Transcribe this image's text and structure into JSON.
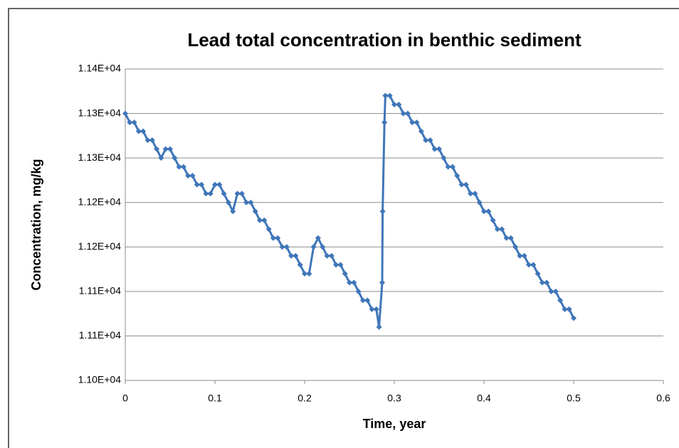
{
  "chart_data": {
    "type": "line",
    "title": "Lead total concentration in benthic sediment",
    "x_label": "Time, year",
    "y_label": "Concentration, mg/kg",
    "xlim": [
      0,
      0.6
    ],
    "xticks": [
      0,
      0.1,
      0.2,
      0.3,
      0.4,
      0.5,
      0.6
    ],
    "ylim": [
      11000,
      11350
    ],
    "yticks": [
      {
        "value": 11000,
        "label": "1.10E+04"
      },
      {
        "value": 11050,
        "label": "1.11E+04"
      },
      {
        "value": 11100,
        "label": "1.11E+04"
      },
      {
        "value": 11150,
        "label": "1.12E+04"
      },
      {
        "value": 11200,
        "label": "1.12E+04"
      },
      {
        "value": 11250,
        "label": "1.13E+04"
      },
      {
        "value": 11300,
        "label": "1.13E+04"
      },
      {
        "value": 11350,
        "label": "1.14E+04"
      }
    ],
    "grid": true,
    "x": [
      0,
      0.005,
      0.01,
      0.015,
      0.02,
      0.025,
      0.03,
      0.035,
      0.04,
      0.045,
      0.05,
      0.055,
      0.06,
      0.065,
      0.07,
      0.075,
      0.08,
      0.085,
      0.09,
      0.095,
      0.1,
      0.105,
      0.11,
      0.115,
      0.12,
      0.125,
      0.13,
      0.135,
      0.14,
      0.145,
      0.15,
      0.155,
      0.16,
      0.165,
      0.17,
      0.175,
      0.18,
      0.185,
      0.19,
      0.195,
      0.2,
      0.205,
      0.21,
      0.215,
      0.22,
      0.225,
      0.23,
      0.235,
      0.24,
      0.245,
      0.25,
      0.255,
      0.26,
      0.265,
      0.27,
      0.275,
      0.28,
      0.283,
      0.2865,
      0.287,
      0.289,
      0.29,
      0.295,
      0.3,
      0.305,
      0.31,
      0.315,
      0.32,
      0.325,
      0.33,
      0.335,
      0.34,
      0.345,
      0.35,
      0.355,
      0.36,
      0.365,
      0.37,
      0.375,
      0.38,
      0.385,
      0.39,
      0.395,
      0.4,
      0.405,
      0.41,
      0.415,
      0.42,
      0.425,
      0.43,
      0.435,
      0.44,
      0.445,
      0.45,
      0.455,
      0.46,
      0.465,
      0.47,
      0.475,
      0.48,
      0.485,
      0.49,
      0.495,
      0.5
    ],
    "series": [
      {
        "color": "#3f76b9",
        "values": [
          11300,
          11290,
          11290,
          11280,
          11280,
          11270,
          11270,
          11260,
          11250,
          11260,
          11260,
          11250,
          11240,
          11240,
          11230,
          11230,
          11220,
          11220,
          11210,
          11210,
          11220,
          11220,
          11210,
          11200,
          11190,
          11210,
          11210,
          11200,
          11200,
          11190,
          11180,
          11180,
          11170,
          11160,
          11160,
          11150,
          11150,
          11140,
          11140,
          11130,
          11120,
          11120,
          11150,
          11160,
          11150,
          11140,
          11140,
          11130,
          11130,
          11120,
          11110,
          11110,
          11100,
          11090,
          11090,
          11080,
          11080,
          11060,
          11110,
          11190,
          11290,
          11320,
          11320,
          11310,
          11310,
          11300,
          11300,
          11290,
          11290,
          11280,
          11270,
          11270,
          11260,
          11260,
          11250,
          11240,
          11240,
          11230,
          11220,
          11220,
          11210,
          11210,
          11200,
          11190,
          11190,
          11180,
          11170,
          11170,
          11160,
          11160,
          11150,
          11140,
          11140,
          11130,
          11130,
          11120,
          11110,
          11110,
          11100,
          11100,
          11090,
          11080,
          11080,
          11070
        ]
      }
    ]
  }
}
